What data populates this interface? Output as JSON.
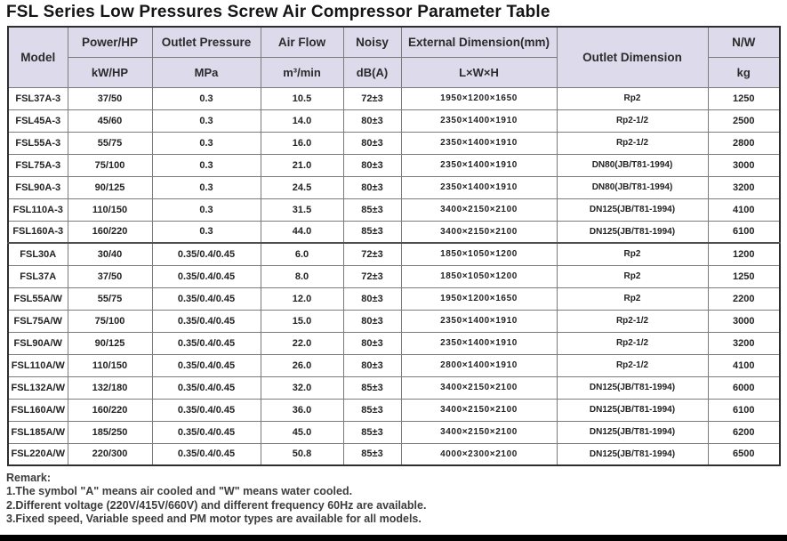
{
  "title": "FSL Series Low Pressures Screw Air Compressor Parameter Table",
  "colors": {
    "header_bg": "#dcdaeb",
    "outer_border": "#2e2e2e",
    "inner_border": "#7b7b7b",
    "bottom_bar": "#000000"
  },
  "table": {
    "headers": {
      "model": "Model",
      "power": "Power/HP",
      "power_unit": "kW/HP",
      "pressure": "Outlet Pressure",
      "pressure_unit": "MPa",
      "airflow": "Air Flow",
      "airflow_unit": "m³/min",
      "noisy": "Noisy",
      "noisy_unit": "dB(A)",
      "dimension": "External Dimension(mm)",
      "dimension_unit": "L×W×H",
      "outlet": "Outlet Dimension",
      "nw": "N/W",
      "nw_unit": "kg"
    },
    "column_keys": [
      "model",
      "power-kw-hp",
      "outlet-pressure-mpa",
      "air-flow-m3-min",
      "noisy-dba",
      "external-dimension-lwh",
      "outlet-dimension",
      "net-weight-kg"
    ],
    "rows": [
      [
        "FSL37A-3",
        "37/50",
        "0.3",
        "10.5",
        "72±3",
        "1950×1200×1650",
        "Rp2",
        "1250"
      ],
      [
        "FSL45A-3",
        "45/60",
        "0.3",
        "14.0",
        "80±3",
        "2350×1400×1910",
        "Rp2-1/2",
        "2500"
      ],
      [
        "FSL55A-3",
        "55/75",
        "0.3",
        "16.0",
        "80±3",
        "2350×1400×1910",
        "Rp2-1/2",
        "2800"
      ],
      [
        "FSL75A-3",
        "75/100",
        "0.3",
        "21.0",
        "80±3",
        "2350×1400×1910",
        "DN80(JB/T81-1994)",
        "3000"
      ],
      [
        "FSL90A-3",
        "90/125",
        "0.3",
        "24.5",
        "80±3",
        "2350×1400×1910",
        "DN80(JB/T81-1994)",
        "3200"
      ],
      [
        "FSL110A-3",
        "110/150",
        "0.3",
        "31.5",
        "85±3",
        "3400×2150×2100",
        "DN125(JB/T81-1994)",
        "4100"
      ],
      [
        "FSL160A-3",
        "160/220",
        "0.3",
        "44.0",
        "85±3",
        "3400×2150×2100",
        "DN125(JB/T81-1994)",
        "6100"
      ],
      [
        "FSL30A",
        "30/40",
        "0.35/0.4/0.45",
        "6.0",
        "72±3",
        "1850×1050×1200",
        "Rp2",
        "1200"
      ],
      [
        "FSL37A",
        "37/50",
        "0.35/0.4/0.45",
        "8.0",
        "72±3",
        "1850×1050×1200",
        "Rp2",
        "1250"
      ],
      [
        "FSL55A/W",
        "55/75",
        "0.35/0.4/0.45",
        "12.0",
        "80±3",
        "1950×1200×1650",
        "Rp2",
        "2200"
      ],
      [
        "FSL75A/W",
        "75/100",
        "0.35/0.4/0.45",
        "15.0",
        "80±3",
        "2350×1400×1910",
        "Rp2-1/2",
        "3000"
      ],
      [
        "FSL90A/W",
        "90/125",
        "0.35/0.4/0.45",
        "22.0",
        "80±3",
        "2350×1400×1910",
        "Rp2-1/2",
        "3200"
      ],
      [
        "FSL110A/W",
        "110/150",
        "0.35/0.4/0.45",
        "26.0",
        "80±3",
        "2800×1400×1910",
        "Rp2-1/2",
        "4100"
      ],
      [
        "FSL132A/W",
        "132/180",
        "0.35/0.4/0.45",
        "32.0",
        "85±3",
        "3400×2150×2100",
        "DN125(JB/T81-1994)",
        "6000"
      ],
      [
        "FSL160A/W",
        "160/220",
        "0.35/0.4/0.45",
        "36.0",
        "85±3",
        "3400×2150×2100",
        "DN125(JB/T81-1994)",
        "6100"
      ],
      [
        "FSL185A/W",
        "185/250",
        "0.35/0.4/0.45",
        "45.0",
        "85±3",
        "3400×2150×2100",
        "DN125(JB/T81-1994)",
        "6200"
      ],
      [
        "FSL220A/W",
        "220/300",
        "0.35/0.4/0.45",
        "50.8",
        "85±3",
        "4000×2300×2100",
        "DN125(JB/T81-1994)",
        "6500"
      ]
    ],
    "group_separator_after_row": 6
  },
  "remark": {
    "title": "Remark:",
    "lines": [
      "1.The symbol \"A\" means air cooled and \"W\" means water cooled.",
      "2.Different voltage (220V/415V/660V) and different frequency 60Hz are available.",
      "3.Fixed speed, Variable speed and PM motor types are available for all models."
    ]
  }
}
